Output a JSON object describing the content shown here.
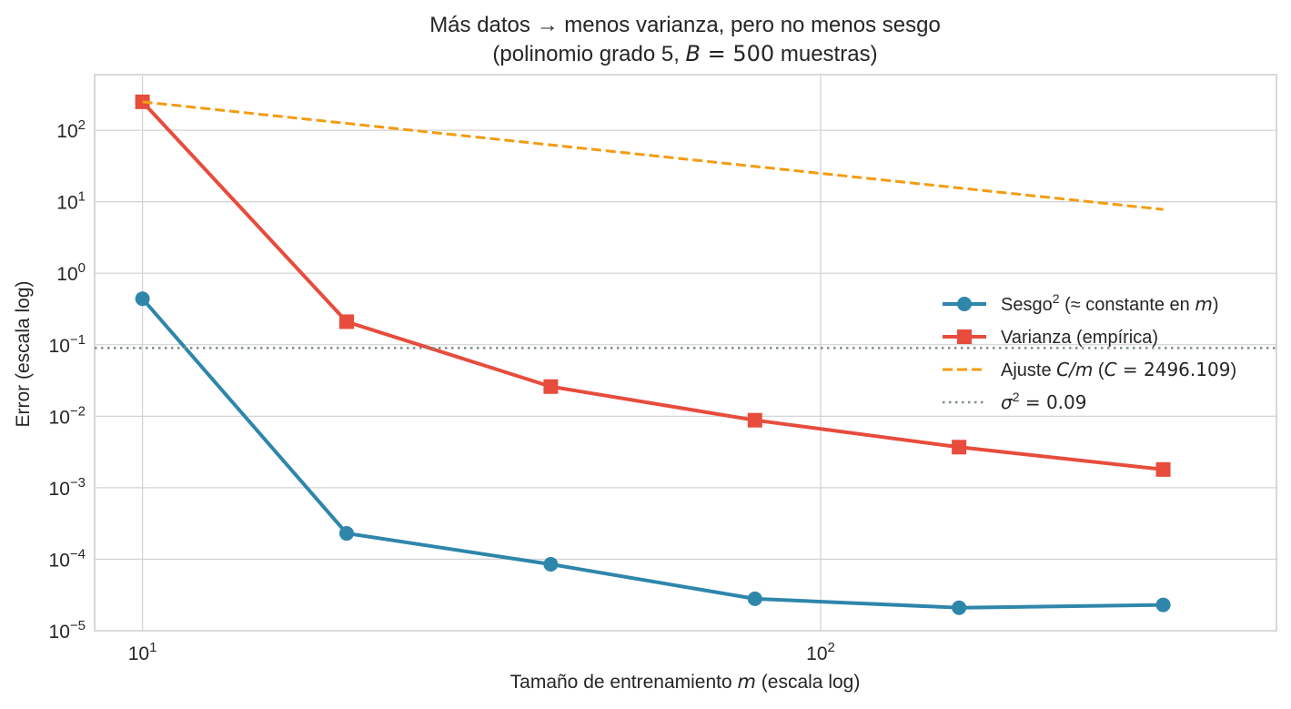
{
  "chart_data": {
    "type": "line",
    "title": "Más datos → menos varianza, pero no menos sesgo",
    "subtitle": "(polinomio grado 5, B = 500 muestras)",
    "subtitle_parts": {
      "prefix": "(polinomio grado 5, ",
      "var": "B",
      "eq": " = 500",
      "suffix": " muestras)"
    },
    "xlabel": "Tamaño de entrenamiento m (escala log)",
    "xlabel_parts": {
      "prefix": "Tamaño de entrenamiento ",
      "var": "m",
      "suffix": " (escala log)"
    },
    "ylabel": "Error (escala log)",
    "xscale": "log",
    "yscale": "log",
    "xlim": [
      8.5,
      470
    ],
    "ylim": [
      1e-05,
      600
    ],
    "grid": true,
    "x_ticks": [
      {
        "value": 10,
        "base": "10",
        "exp": "1"
      },
      {
        "value": 100,
        "base": "10",
        "exp": "2"
      }
    ],
    "y_ticks": [
      {
        "value": 100,
        "base": "10",
        "exp": "2"
      },
      {
        "value": 10,
        "base": "10",
        "exp": "1"
      },
      {
        "value": 1,
        "base": "10",
        "exp": "0"
      },
      {
        "value": 0.1,
        "base": "10",
        "exp": "−1"
      },
      {
        "value": 0.01,
        "base": "10",
        "exp": "−2"
      },
      {
        "value": 0.001,
        "base": "10",
        "exp": "−3"
      },
      {
        "value": 0.0001,
        "base": "10",
        "exp": "−4"
      },
      {
        "value": 1e-05,
        "base": "10",
        "exp": "−5"
      }
    ],
    "x": [
      10,
      20,
      40,
      80,
      160,
      320
    ],
    "series": [
      {
        "name": "Sesgo² (≈ constante en m)",
        "color": "#2e86ab",
        "marker": "circle",
        "style": "solid",
        "values": [
          0.44,
          0.00023,
          8.5e-05,
          2.8e-05,
          2.1e-05,
          2.3e-05
        ]
      },
      {
        "name": "Varianza (empírica)",
        "color": "#e74c3c",
        "marker": "square",
        "style": "solid",
        "values": [
          250,
          0.21,
          0.026,
          0.0088,
          0.0037,
          0.0018
        ]
      },
      {
        "name": "Ajuste C/m (C = 2496.109)",
        "color": "#f39c12",
        "marker": "none",
        "style": "dashed",
        "x": [
          10,
          320
        ],
        "values": [
          249.6109,
          7.80034
        ]
      },
      {
        "name": "σ² = 0.09",
        "color": "#7f8c8d",
        "marker": "none",
        "style": "dotted",
        "hline": 0.09
      }
    ],
    "legend": {
      "placement": "center-right",
      "entries": [
        {
          "parts": [
            {
              "t": "Sesgo"
            },
            {
              "t": "2",
              "sup": true
            },
            {
              "t": " (≈ constante en "
            },
            {
              "t": "m",
              "math": true
            },
            {
              "t": ")"
            }
          ]
        },
        {
          "parts": [
            {
              "t": "Varianza (empírica)"
            }
          ]
        },
        {
          "parts": [
            {
              "t": "Ajuste "
            },
            {
              "t": "C/m",
              "math": true
            },
            {
              "t": " ("
            },
            {
              "t": "C",
              "math": true
            },
            {
              "t": " = 2496.109",
              "mathr": true
            },
            {
              "t": ")"
            }
          ]
        },
        {
          "parts": [
            {
              "t": "σ",
              "math": true
            },
            {
              "t": "2",
              "sup": true
            },
            {
              "t": " = 0.09",
              "mathr": true
            }
          ]
        }
      ]
    }
  }
}
